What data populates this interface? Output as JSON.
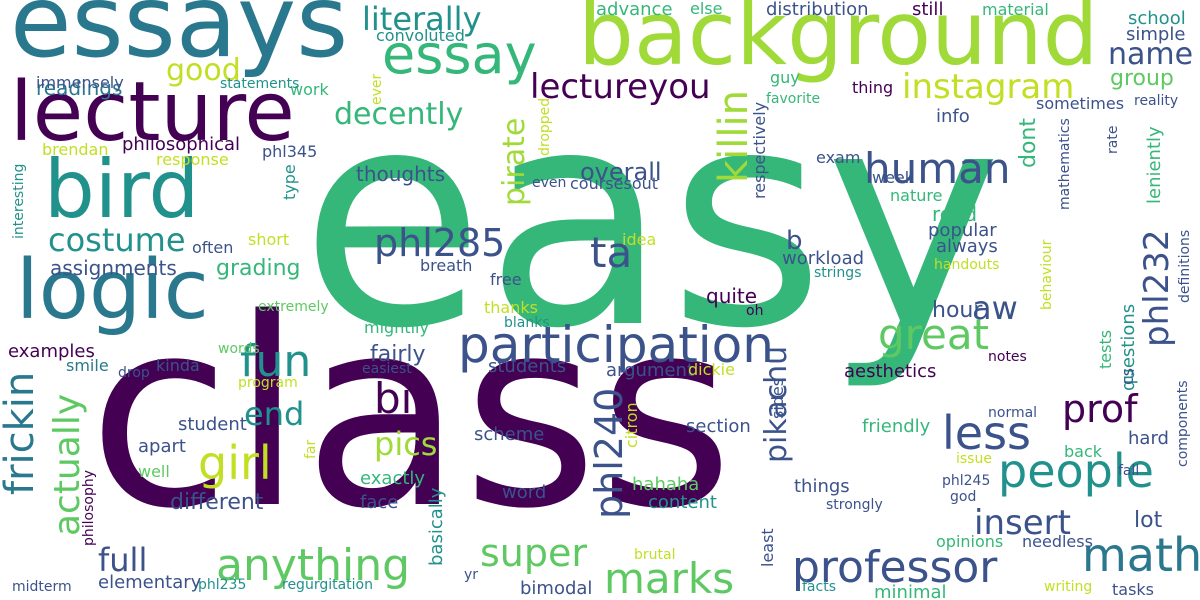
{
  "colors": {
    "background": "#ffffff",
    "palette": [
      "#440154",
      "#3b528b",
      "#21918c",
      "#2a788e",
      "#35b779",
      "#5ec962",
      "#a0da39",
      "#c2df23",
      "#fde725"
    ]
  },
  "words": [
    {
      "id": "easy",
      "text": "easy",
      "color": "#35b779",
      "vertical": false
    },
    {
      "id": "class",
      "text": "class",
      "color": "#440154",
      "vertical": false
    },
    {
      "id": "background",
      "text": "background",
      "color": "#a0da39",
      "vertical": false
    },
    {
      "id": "essays",
      "text": "essays",
      "color": "#2a788e",
      "vertical": false
    },
    {
      "id": "lecture",
      "text": "lecture",
      "color": "#440154",
      "vertical": false
    },
    {
      "id": "bird",
      "text": "bird",
      "color": "#21918c",
      "vertical": false
    },
    {
      "id": "logic",
      "text": "logic",
      "color": "#2a788e",
      "vertical": false
    },
    {
      "id": "essay",
      "text": "essay",
      "color": "#35b779",
      "vertical": false
    },
    {
      "id": "literally",
      "text": "literally",
      "color": "#21918c",
      "vertical": false
    },
    {
      "id": "instagram",
      "text": "instagram",
      "color": "#c2df23",
      "vertical": false
    },
    {
      "id": "human",
      "text": "human",
      "color": "#3b528b",
      "vertical": false
    },
    {
      "id": "costume",
      "text": "costume",
      "color": "#21918c",
      "vertical": false
    },
    {
      "id": "participation",
      "text": "participation",
      "color": "#3b528b",
      "vertical": false
    },
    {
      "id": "great",
      "text": "great",
      "color": "#5ec962",
      "vertical": false
    },
    {
      "id": "phl285",
      "text": "phl285",
      "color": "#3b528b",
      "vertical": false
    },
    {
      "id": "ta",
      "text": "ta",
      "color": "#3b528b",
      "vertical": false
    },
    {
      "id": "girl",
      "text": "girl",
      "color": "#c2df23",
      "vertical": false
    },
    {
      "id": "fun",
      "text": "fun",
      "color": "#21918c",
      "vertical": false
    },
    {
      "id": "people",
      "text": "people",
      "color": "#21918c",
      "vertical": false
    },
    {
      "id": "less",
      "text": "less",
      "color": "#3b528b",
      "vertical": false
    },
    {
      "id": "prof",
      "text": "prof",
      "color": "#440154",
      "vertical": false
    },
    {
      "id": "math",
      "text": "math",
      "color": "#2a788e",
      "vertical": false
    },
    {
      "id": "professor",
      "text": "professor",
      "color": "#3b528b",
      "vertical": false
    },
    {
      "id": "anything",
      "text": "anything",
      "color": "#5ec962",
      "vertical": false
    },
    {
      "id": "marks",
      "text": "marks",
      "color": "#5ec962",
      "vertical": false
    },
    {
      "id": "super",
      "text": "super",
      "color": "#5ec962",
      "vertical": false
    },
    {
      "id": "bit",
      "text": "bit",
      "color": "#440154",
      "vertical": false
    },
    {
      "id": "end",
      "text": "end",
      "color": "#21918c",
      "vertical": false
    },
    {
      "id": "pics",
      "text": "pics",
      "color": "#a0da39",
      "vertical": false
    },
    {
      "id": "insert",
      "text": "insert",
      "color": "#3b528b",
      "vertical": false
    },
    {
      "id": "full",
      "text": "full",
      "color": "#3b528b",
      "vertical": false
    },
    {
      "id": "aw",
      "text": "aw",
      "color": "#3b528b",
      "vertical": false
    },
    {
      "id": "name",
      "text": "name",
      "color": "#3b528b",
      "vertical": false
    },
    {
      "id": "lectureyou",
      "text": "lectureyou",
      "color": "#440154",
      "vertical": false
    },
    {
      "id": "decently",
      "text": "decently",
      "color": "#35b779",
      "vertical": false
    },
    {
      "id": "good",
      "text": "good",
      "color": "#c2df23",
      "vertical": false
    },
    {
      "id": "readings",
      "text": "readings",
      "color": "#2a788e",
      "vertical": false
    },
    {
      "id": "overall",
      "text": "overall",
      "color": "#3b528b",
      "vertical": false
    },
    {
      "id": "thoughts",
      "text": "thoughts",
      "color": "#3b528b",
      "vertical": false
    },
    {
      "id": "assignments",
      "text": "assignments",
      "color": "#3b528b",
      "vertical": false
    },
    {
      "id": "grading",
      "text": "grading",
      "color": "#35b779",
      "vertical": false
    },
    {
      "id": "fairly",
      "text": "fairly",
      "color": "#3b528b",
      "vertical": false
    },
    {
      "id": "different",
      "text": "different",
      "color": "#3b528b",
      "vertical": false
    },
    {
      "id": "group",
      "text": "group",
      "color": "#5ec962",
      "vertical": false
    },
    {
      "id": "hour",
      "text": "hour",
      "color": "#3b528b",
      "vertical": false
    },
    {
      "id": "lot",
      "text": "lot",
      "color": "#3b528b",
      "vertical": false
    },
    {
      "id": "quite",
      "text": "quite",
      "color": "#440154",
      "vertical": false
    },
    {
      "id": "read",
      "text": "read",
      "color": "#35b779",
      "vertical": false
    },
    {
      "id": "b",
      "text": "b",
      "color": "#3b528b",
      "vertical": false
    },
    {
      "id": "work",
      "text": "work",
      "color": "#35b779",
      "vertical": false
    },
    {
      "id": "advance",
      "text": "advance",
      "color": "#35b779",
      "vertical": false
    },
    {
      "id": "else",
      "text": "else",
      "color": "#35b779",
      "vertical": false
    },
    {
      "id": "distribution",
      "text": "distribution",
      "color": "#3b528b",
      "vertical": false
    },
    {
      "id": "still",
      "text": "still",
      "color": "#440154",
      "vertical": false
    },
    {
      "id": "material",
      "text": "material",
      "color": "#35b779",
      "vertical": false
    },
    {
      "id": "school",
      "text": "school",
      "color": "#21918c",
      "vertical": false
    },
    {
      "id": "simple",
      "text": "simple",
      "color": "#3b528b",
      "vertical": false
    },
    {
      "id": "convoluted",
      "text": "convoluted",
      "color": "#21918c",
      "vertical": false
    },
    {
      "id": "immensely",
      "text": "immensely",
      "color": "#3b528b",
      "vertical": false
    },
    {
      "id": "statements",
      "text": "statements",
      "color": "#21918c",
      "vertical": false
    },
    {
      "id": "philosophical",
      "text": "philosophical",
      "color": "#440154",
      "vertical": false
    },
    {
      "id": "brendan",
      "text": "brendan",
      "color": "#c2df23",
      "vertical": false
    },
    {
      "id": "response",
      "text": "response",
      "color": "#c2df23",
      "vertical": false
    },
    {
      "id": "phl345",
      "text": "phl345",
      "color": "#3b528b",
      "vertical": false
    },
    {
      "id": "often",
      "text": "often",
      "color": "#3b528b",
      "vertical": false
    },
    {
      "id": "short",
      "text": "short",
      "color": "#c2df23",
      "vertical": false
    },
    {
      "id": "extremely",
      "text": "extremely",
      "color": "#5ec962",
      "vertical": false
    },
    {
      "id": "mightily",
      "text": "mightily",
      "color": "#35b779",
      "vertical": false
    },
    {
      "id": "examples",
      "text": "examples",
      "color": "#440154",
      "vertical": false
    },
    {
      "id": "smile",
      "text": "smile",
      "color": "#2a788e",
      "vertical": false
    },
    {
      "id": "kinda",
      "text": "kinda",
      "color": "#3b528b",
      "vertical": false
    },
    {
      "id": "drop",
      "text": "drop",
      "color": "#3b528b",
      "vertical": false
    },
    {
      "id": "words",
      "text": "words",
      "color": "#5ec962",
      "vertical": false
    },
    {
      "id": "program",
      "text": "program",
      "color": "#c2df23",
      "vertical": false
    },
    {
      "id": "easiest",
      "text": "easiest",
      "color": "#3b528b",
      "vertical": false
    },
    {
      "id": "students",
      "text": "students",
      "color": "#3b528b",
      "vertical": false
    },
    {
      "id": "argument",
      "text": "argument",
      "color": "#3b528b",
      "vertical": false
    },
    {
      "id": "dickie",
      "text": "dickie",
      "color": "#c2df23",
      "vertical": false
    },
    {
      "id": "aesthetics",
      "text": "aesthetics",
      "color": "#440154",
      "vertical": false
    },
    {
      "id": "friendly",
      "text": "friendly",
      "color": "#35b779",
      "vertical": false
    },
    {
      "id": "hard",
      "text": "hard",
      "color": "#3b528b",
      "vertical": false
    },
    {
      "id": "student",
      "text": "student",
      "color": "#3b528b",
      "vertical": false
    },
    {
      "id": "apart",
      "text": "apart",
      "color": "#3b528b",
      "vertical": false
    },
    {
      "id": "well",
      "text": "well",
      "color": "#5ec962",
      "vertical": false
    },
    {
      "id": "scheme",
      "text": "scheme",
      "color": "#3b528b",
      "vertical": false
    },
    {
      "id": "section",
      "text": "section",
      "color": "#3b528b",
      "vertical": false
    },
    {
      "id": "exactly",
      "text": "exactly",
      "color": "#35b779",
      "vertical": false
    },
    {
      "id": "face",
      "text": "face",
      "color": "#3b528b",
      "vertical": false
    },
    {
      "id": "hahaha",
      "text": "hahaha",
      "color": "#5ec962",
      "vertical": false
    },
    {
      "id": "content",
      "text": "content",
      "color": "#21918c",
      "vertical": false
    },
    {
      "id": "word",
      "text": "word",
      "color": "#3b528b",
      "vertical": false
    },
    {
      "id": "things",
      "text": "things",
      "color": "#3b528b",
      "vertical": false
    },
    {
      "id": "strongly",
      "text": "strongly",
      "color": "#3b528b",
      "vertical": false
    },
    {
      "id": "elementary",
      "text": "elementary",
      "color": "#3b528b",
      "vertical": false
    },
    {
      "id": "phl235",
      "text": "phl235",
      "color": "#21918c",
      "vertical": false
    },
    {
      "id": "regurgitation",
      "text": "regurgitation",
      "color": "#21918c",
      "vertical": false
    },
    {
      "id": "midterm",
      "text": "midterm",
      "color": "#3b528b",
      "vertical": false
    },
    {
      "id": "bimodal",
      "text": "bimodal",
      "color": "#3b528b",
      "vertical": false
    },
    {
      "id": "brutal",
      "text": "brutal",
      "color": "#c2df23",
      "vertical": false
    },
    {
      "id": "yr",
      "text": "yr",
      "color": "#3b528b",
      "vertical": false
    },
    {
      "id": "facts",
      "text": "facts",
      "color": "#21918c",
      "vertical": false
    },
    {
      "id": "minimal",
      "text": "minimal",
      "color": "#35b779",
      "vertical": false
    },
    {
      "id": "opinions",
      "text": "opinions",
      "color": "#35b779",
      "vertical": false
    },
    {
      "id": "needless",
      "text": "needless",
      "color": "#3b528b",
      "vertical": false
    },
    {
      "id": "writing",
      "text": "writing",
      "color": "#c2df23",
      "vertical": false
    },
    {
      "id": "tasks",
      "text": "tasks",
      "color": "#3b528b",
      "vertical": false
    },
    {
      "id": "phl245",
      "text": "phl245",
      "color": "#3b528b",
      "vertical": false
    },
    {
      "id": "god",
      "text": "god",
      "color": "#3b528b",
      "vertical": false
    },
    {
      "id": "fall",
      "text": "fall",
      "color": "#3b528b",
      "vertical": false
    },
    {
      "id": "issue",
      "text": "issue",
      "color": "#c2df23",
      "vertical": false
    },
    {
      "id": "back",
      "text": "back",
      "color": "#35b779",
      "vertical": false
    },
    {
      "id": "normal",
      "text": "normal",
      "color": "#3b528b",
      "vertical": false
    },
    {
      "id": "notes",
      "text": "notes",
      "color": "#440154",
      "vertical": false
    },
    {
      "id": "workload",
      "text": "workload",
      "color": "#3b528b",
      "vertical": false
    },
    {
      "id": "strings",
      "text": "strings",
      "color": "#21918c",
      "vertical": false
    },
    {
      "id": "handouts",
      "text": "handouts",
      "color": "#c2df23",
      "vertical": false
    },
    {
      "id": "always",
      "text": "always",
      "color": "#3b528b",
      "vertical": false
    },
    {
      "id": "popular",
      "text": "popular",
      "color": "#3b528b",
      "vertical": false
    },
    {
      "id": "nature",
      "text": "nature",
      "color": "#35b779",
      "vertical": false
    },
    {
      "id": "exam",
      "text": "exam",
      "color": "#3b528b",
      "vertical": false
    },
    {
      "id": "week",
      "text": "week",
      "color": "#3b528b",
      "vertical": false
    },
    {
      "id": "info",
      "text": "info",
      "color": "#3b528b",
      "vertical": false
    },
    {
      "id": "sometimes",
      "text": "sometimes",
      "color": "#3b528b",
      "vertical": false
    },
    {
      "id": "reality",
      "text": "reality",
      "color": "#3b528b",
      "vertical": false
    },
    {
      "id": "favorite",
      "text": "favorite",
      "color": "#35b779",
      "vertical": false
    },
    {
      "id": "thing",
      "text": "thing",
      "color": "#440154",
      "vertical": false
    },
    {
      "id": "guy",
      "text": "guy",
      "color": "#35b779",
      "vertical": false
    },
    {
      "id": "idea",
      "text": "idea",
      "color": "#c2df23",
      "vertical": false
    },
    {
      "id": "breath",
      "text": "breath",
      "color": "#3b528b",
      "vertical": false
    },
    {
      "id": "free",
      "text": "free",
      "color": "#3b528b",
      "vertical": false
    },
    {
      "id": "thanks",
      "text": "thanks",
      "color": "#c2df23",
      "vertical": false
    },
    {
      "id": "blanks",
      "text": "blanks",
      "color": "#21918c",
      "vertical": false
    },
    {
      "id": "oh",
      "text": "oh",
      "color": "#440154",
      "vertical": false
    },
    {
      "id": "even",
      "text": "even",
      "color": "#3b528b",
      "vertical": false
    },
    {
      "id": "coursesout",
      "text": "coursesout",
      "color": "#3b528b",
      "vertical": false
    },
    {
      "id": "interesting",
      "text": "interesting",
      "color": "#21918c",
      "vertical": true
    },
    {
      "id": "frickin",
      "text": "frickin",
      "color": "#2a788e",
      "vertical": true
    },
    {
      "id": "actually",
      "text": "actually",
      "color": "#5ec962",
      "vertical": true
    },
    {
      "id": "type",
      "text": "type",
      "color": "#21918c",
      "vertical": true
    },
    {
      "id": "killin",
      "text": "killin",
      "color": "#a0da39",
      "vertical": true
    },
    {
      "id": "pirate",
      "text": "pirate",
      "color": "#a0da39",
      "vertical": true
    },
    {
      "id": "pikachu",
      "text": "pikachu",
      "color": "#3b528b",
      "vertical": true
    },
    {
      "id": "phl240",
      "text": "phl240",
      "color": "#3b528b",
      "vertical": true
    },
    {
      "id": "phl232",
      "text": "phl232",
      "color": "#3b528b",
      "vertical": true
    },
    {
      "id": "dont",
      "text": "dont",
      "color": "#35b779",
      "vertical": true
    },
    {
      "id": "leniently",
      "text": "leniently",
      "color": "#35b779",
      "vertical": true
    },
    {
      "id": "mathematics",
      "text": "mathematics",
      "color": "#3b528b",
      "vertical": true
    },
    {
      "id": "rate",
      "text": "rate",
      "color": "#3b528b",
      "vertical": true
    },
    {
      "id": "definitions",
      "text": "definitions",
      "color": "#3b528b",
      "vertical": true
    },
    {
      "id": "questions",
      "text": "questions",
      "color": "#21918c",
      "vertical": true
    },
    {
      "id": "tests",
      "text": "tests",
      "color": "#35b779",
      "vertical": true
    },
    {
      "id": "cs",
      "text": "cs",
      "color": "#3b528b",
      "vertical": true
    },
    {
      "id": "behaviour",
      "text": "behaviour",
      "color": "#c2df23",
      "vertical": true
    },
    {
      "id": "components",
      "text": "components",
      "color": "#3b528b",
      "vertical": true
    },
    {
      "id": "respectively",
      "text": "respectively",
      "color": "#3b528b",
      "vertical": true
    },
    {
      "id": "sides",
      "text": "sides",
      "color": "#3b528b",
      "vertical": true
    },
    {
      "id": "least",
      "text": "least",
      "color": "#3b528b",
      "vertical": true
    },
    {
      "id": "basically",
      "text": "basically",
      "color": "#21918c",
      "vertical": true
    },
    {
      "id": "citron",
      "text": "citron",
      "color": "#c2df23",
      "vertical": true
    },
    {
      "id": "philosophy",
      "text": "philosophy",
      "color": "#440154",
      "vertical": true
    },
    {
      "id": "far",
      "text": "far",
      "color": "#c2df23",
      "vertical": true
    },
    {
      "id": "ever",
      "text": "ever",
      "color": "#c2df23",
      "vertical": true
    },
    {
      "id": "dropped",
      "text": "dropped",
      "color": "#c2df23",
      "vertical": true
    }
  ]
}
